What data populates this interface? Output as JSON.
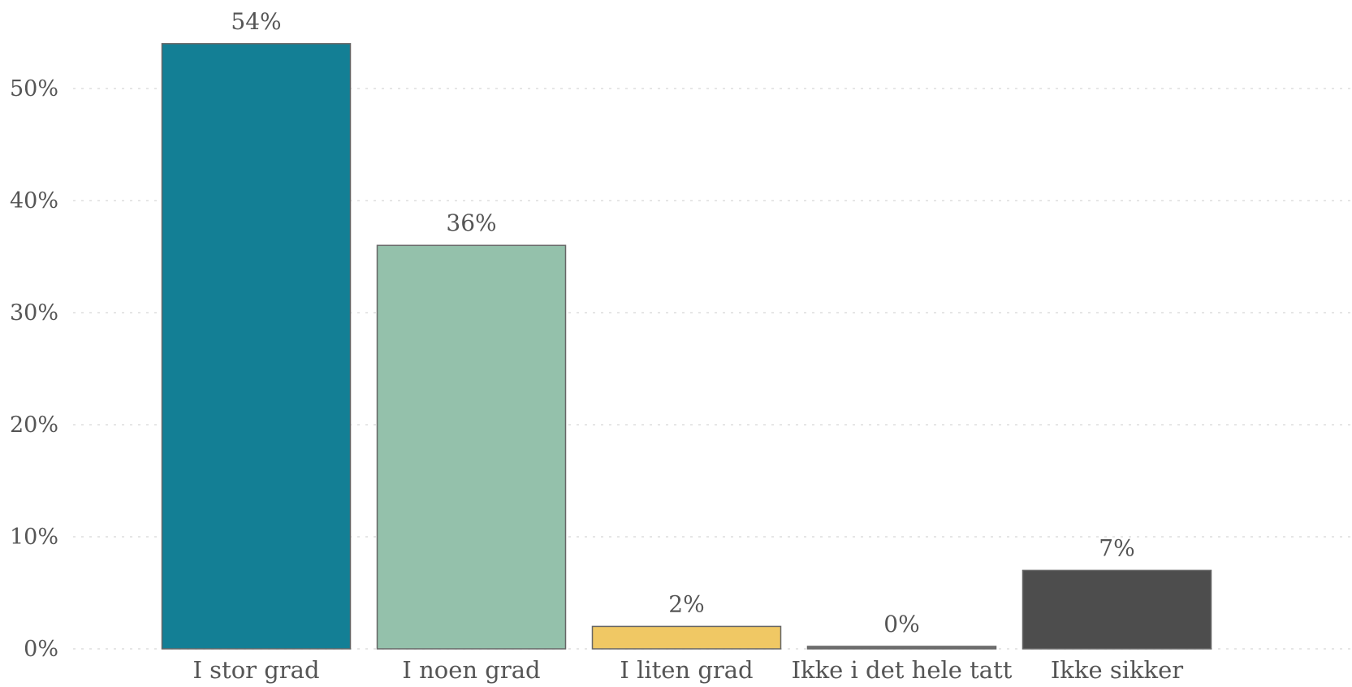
{
  "chart_data": {
    "type": "bar",
    "categories": [
      "I stor grad",
      "I noen grad",
      "I liten grad",
      "Ikke i det hele tatt",
      "Ikke sikker"
    ],
    "values": [
      54,
      36,
      2,
      0,
      7
    ],
    "data_labels": [
      "54%",
      "36%",
      "2%",
      "0%",
      "7%"
    ],
    "bar_colors": [
      "#137f95",
      "#94c1ab",
      "#f0c864",
      "#6e6e6e",
      "#4d4d4d"
    ],
    "title": "",
    "xlabel": "",
    "ylabel": "",
    "ylim": [
      0,
      54
    ],
    "yticks": [
      0,
      10,
      20,
      30,
      40,
      50
    ],
    "ytick_labels": [
      "0%",
      "10%",
      "20%",
      "30%",
      "40%",
      "50%"
    ],
    "grid": "horizontal-dotted",
    "legend": "none"
  }
}
